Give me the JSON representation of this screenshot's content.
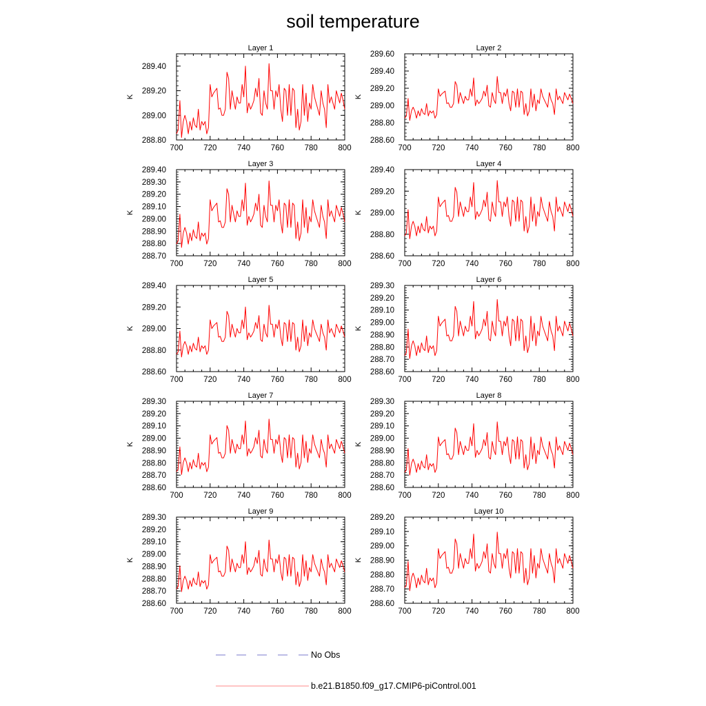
{
  "chart_data": {
    "type": "line",
    "title": "soil temperature",
    "xlabel": "",
    "ylabel": "K",
    "xlim": [
      700,
      800
    ],
    "xticks": [
      700,
      720,
      740,
      760,
      780,
      800
    ],
    "legend": [
      {
        "name": "No Obs",
        "color": "#7777cc",
        "style": "dashed"
      },
      {
        "name": "b.e21.B1850.f09_g17.CMIP6-piControl.001",
        "color": "#ff0000",
        "style": "solid"
      }
    ],
    "colors": {
      "series": "#ff0000",
      "axis": "#000000",
      "no_obs": "#7777cc",
      "legend_line": "#ff8888"
    },
    "years": [
      700,
      701,
      702,
      703,
      704,
      705,
      706,
      707,
      708,
      709,
      710,
      711,
      712,
      713,
      714,
      715,
      716,
      717,
      718,
      719,
      720,
      721,
      722,
      723,
      724,
      725,
      726,
      727,
      728,
      729,
      730,
      731,
      732,
      733,
      734,
      735,
      736,
      737,
      738,
      739,
      740,
      741,
      742,
      743,
      744,
      745,
      746,
      747,
      748,
      749,
      750,
      751,
      752,
      753,
      754,
      755,
      756,
      757,
      758,
      759,
      760,
      761,
      762,
      763,
      764,
      765,
      766,
      767,
      768,
      769,
      770,
      771,
      772,
      773,
      774,
      775,
      776,
      777,
      778,
      779,
      780,
      781,
      782,
      783,
      784,
      785,
      786,
      787,
      788,
      789,
      790,
      791,
      792,
      793,
      794,
      795,
      796,
      797,
      798,
      799,
      800
    ],
    "base_anomaly": [
      -0.15,
      -0.12,
      0.12,
      -0.18,
      -0.05,
      0.0,
      -0.05,
      -0.15,
      -0.05,
      -0.12,
      -0.02,
      -0.08,
      -0.1,
      0.05,
      -0.12,
      -0.05,
      -0.08,
      -0.05,
      -0.15,
      -0.1,
      0.25,
      0.15,
      0.18,
      0.2,
      0.22,
      0.05,
      0.06,
      0.0,
      0.0,
      0.05,
      0.35,
      0.3,
      0.05,
      0.2,
      0.12,
      0.05,
      0.15,
      0.1,
      0.1,
      0.25,
      0.15,
      0.4,
      0.02,
      0.1,
      0.05,
      0.08,
      0.12,
      0.22,
      0.15,
      0.3,
      0.02,
      0.0,
      0.2,
      0.1,
      0.05,
      0.42,
      0.2,
      0.2,
      0.05,
      0.2,
      0.15,
      0.25,
      0.05,
      -0.05,
      0.22,
      0.2,
      0.0,
      0.25,
      0.0,
      0.22,
      0.2,
      -0.1,
      0.05,
      -0.12,
      -0.05,
      0.25,
      0.0,
      0.18,
      -0.05,
      0.1,
      0.05,
      0.25,
      0.15,
      0.1,
      0.05,
      0.0,
      0.2,
      0.1,
      0.05,
      -0.1,
      0.25,
      0.1,
      0.15,
      0.1,
      0.05,
      0.2,
      0.15,
      0.1,
      0.18,
      0.12,
      0.05
    ],
    "panels": [
      {
        "title": "Layer 1",
        "base": 289.0,
        "scale": 1.0,
        "ylim": [
          288.8,
          289.5
        ],
        "ytick_labels": [
          "288.80",
          "289.00",
          "289.20",
          "289.40"
        ]
      },
      {
        "title": "Layer 2",
        "base": 288.98,
        "scale": 0.85,
        "ylim": [
          288.6,
          289.6
        ],
        "ytick_labels": [
          "288.60",
          "288.80",
          "289.00",
          "289.20",
          "289.40",
          "289.60"
        ]
      },
      {
        "title": "Layer 3",
        "base": 288.93,
        "scale": 0.9,
        "ylim": [
          288.7,
          289.4
        ],
        "ytick_labels": [
          "288.70",
          "288.80",
          "288.90",
          "289.00",
          "289.10",
          "289.20",
          "289.30",
          "289.40"
        ]
      },
      {
        "title": "Layer 4",
        "base": 288.92,
        "scale": 0.9,
        "ylim": [
          288.6,
          289.4
        ],
        "ytick_labels": [
          "288.60",
          "288.80",
          "289.00",
          "289.20",
          "289.40"
        ]
      },
      {
        "title": "Layer 5",
        "base": 288.88,
        "scale": 0.8,
        "ylim": [
          288.6,
          289.4
        ],
        "ytick_labels": [
          "288.60",
          "288.80",
          "289.00",
          "289.20",
          "289.40"
        ]
      },
      {
        "title": "Layer 6",
        "base": 288.85,
        "scale": 0.8,
        "ylim": [
          288.6,
          289.3
        ],
        "ytick_labels": [
          "288.60",
          "288.70",
          "288.80",
          "288.90",
          "289.00",
          "289.10",
          "289.20",
          "289.30"
        ]
      },
      {
        "title": "Layer 7",
        "base": 288.84,
        "scale": 0.75,
        "ylim": [
          288.6,
          289.3
        ],
        "ytick_labels": [
          "288.60",
          "288.70",
          "288.80",
          "288.90",
          "289.00",
          "289.10",
          "289.20",
          "289.30"
        ]
      },
      {
        "title": "Layer 8",
        "base": 288.83,
        "scale": 0.72,
        "ylim": [
          288.6,
          289.3
        ],
        "ytick_labels": [
          "288.60",
          "288.70",
          "288.80",
          "288.90",
          "289.00",
          "289.10",
          "289.20",
          "289.30"
        ]
      },
      {
        "title": "Layer 9",
        "base": 288.82,
        "scale": 0.7,
        "ylim": [
          288.6,
          289.3
        ],
        "ytick_labels": [
          "288.60",
          "288.70",
          "288.80",
          "288.90",
          "289.00",
          "289.10",
          "289.20",
          "289.30"
        ]
      },
      {
        "title": "Layer 10",
        "base": 288.81,
        "scale": 0.68,
        "ylim": [
          288.6,
          289.2
        ],
        "ytick_labels": [
          "288.60",
          "288.70",
          "288.80",
          "288.90",
          "289.00",
          "289.10",
          "289.20"
        ]
      }
    ]
  }
}
